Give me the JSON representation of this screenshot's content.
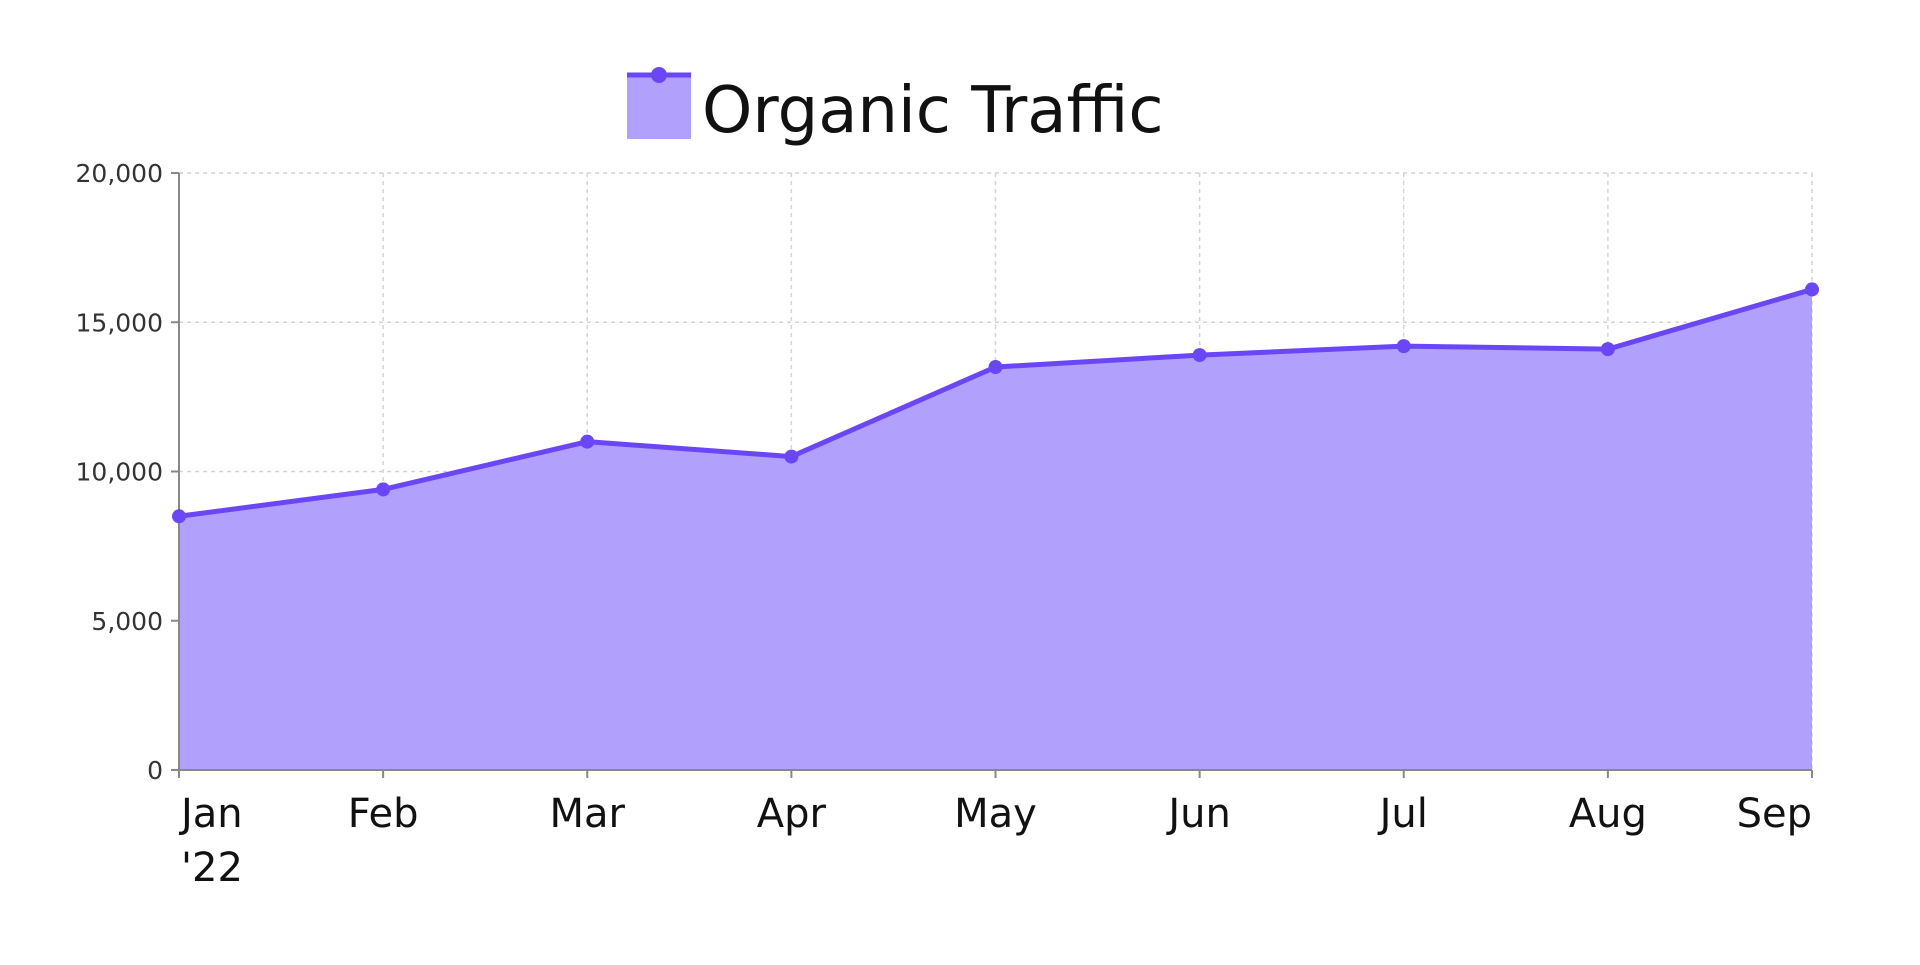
{
  "chart_data": {
    "type": "area",
    "title": "",
    "xlabel": "",
    "ylabel": "",
    "categories": [
      "Jan '22",
      "Feb",
      "Mar",
      "Apr",
      "May",
      "Jun",
      "Jul",
      "Aug",
      "Sep"
    ],
    "category_lines": [
      [
        "Jan",
        "'22"
      ],
      [
        "Feb"
      ],
      [
        "Mar"
      ],
      [
        "Apr"
      ],
      [
        "May"
      ],
      [
        "Jun"
      ],
      [
        "Jul"
      ],
      [
        "Aug"
      ],
      [
        "Sep"
      ]
    ],
    "series": [
      {
        "name": "Organic Traffic",
        "values": [
          8500,
          9400,
          11000,
          10500,
          13500,
          13900,
          14200,
          14100,
          16100
        ]
      }
    ],
    "ylim": [
      0,
      20000
    ],
    "yticks": [
      0,
      5000,
      10000,
      15000,
      20000
    ],
    "ytick_labels": [
      "0",
      "5,000",
      "10,000",
      "15,000",
      "20,000"
    ],
    "grid": true,
    "legend": "top-center",
    "colors": {
      "line": "#6a46f6",
      "fill": "#b1a1fd",
      "marker": "#6a46f6"
    }
  }
}
